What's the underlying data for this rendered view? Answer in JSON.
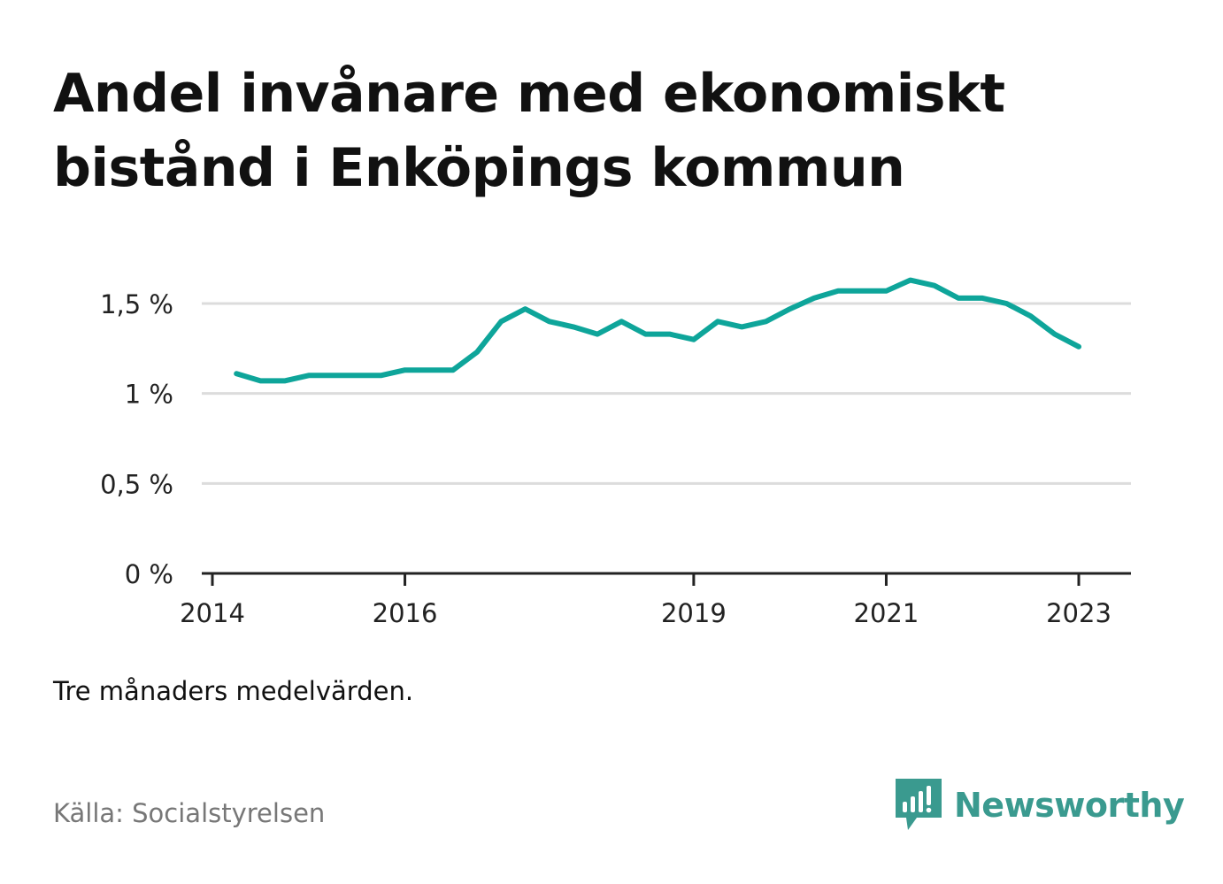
{
  "title": "Andel invånare med ekonomiskt bistånd i Enköpings kommun",
  "footnote": "Tre månaders medelvärden.",
  "source": "Källa: Socialstyrelsen",
  "logo": {
    "text": "Newsworthy",
    "icon": "newsworthy-logo-icon",
    "color": "#3a9a8f"
  },
  "chart_data": {
    "type": "line",
    "title": "Andel invånare med ekonomiskt bistånd i Enköpings kommun",
    "xlabel": "",
    "ylabel": "",
    "x_range": [
      "2014-01-01",
      "2023-06-30"
    ],
    "ylim": [
      0,
      1.8
    ],
    "grid": true,
    "y_ticks": [
      {
        "value": 0,
        "label": "0 %"
      },
      {
        "value": 0.5,
        "label": "0,5 %"
      },
      {
        "value": 1,
        "label": "1 %"
      },
      {
        "value": 1.5,
        "label": "1,5 %"
      }
    ],
    "x_ticks": [
      {
        "value": "2014-01-01",
        "label": "2014"
      },
      {
        "value": "2016-01-01",
        "label": "2016"
      },
      {
        "value": "2019-01-01",
        "label": "2019"
      },
      {
        "value": "2021-01-01",
        "label": "2021"
      },
      {
        "value": "2023-01-01",
        "label": "2023"
      }
    ],
    "series": [
      {
        "color": "#0ea59a",
        "points": [
          {
            "x": "2014-04-01",
            "y": 1.11
          },
          {
            "x": "2014-07-01",
            "y": 1.07
          },
          {
            "x": "2014-10-01",
            "y": 1.07
          },
          {
            "x": "2015-01-01",
            "y": 1.1
          },
          {
            "x": "2015-04-01",
            "y": 1.1
          },
          {
            "x": "2015-07-01",
            "y": 1.1
          },
          {
            "x": "2015-10-01",
            "y": 1.1
          },
          {
            "x": "2016-01-01",
            "y": 1.13
          },
          {
            "x": "2016-04-01",
            "y": 1.13
          },
          {
            "x": "2016-07-01",
            "y": 1.13
          },
          {
            "x": "2016-10-01",
            "y": 1.23
          },
          {
            "x": "2017-01-01",
            "y": 1.4
          },
          {
            "x": "2017-04-01",
            "y": 1.47
          },
          {
            "x": "2017-07-01",
            "y": 1.4
          },
          {
            "x": "2017-10-01",
            "y": 1.37
          },
          {
            "x": "2018-01-01",
            "y": 1.33
          },
          {
            "x": "2018-04-01",
            "y": 1.4
          },
          {
            "x": "2018-07-01",
            "y": 1.33
          },
          {
            "x": "2018-10-01",
            "y": 1.33
          },
          {
            "x": "2019-01-01",
            "y": 1.3
          },
          {
            "x": "2019-04-01",
            "y": 1.4
          },
          {
            "x": "2019-07-01",
            "y": 1.37
          },
          {
            "x": "2019-10-01",
            "y": 1.4
          },
          {
            "x": "2020-01-01",
            "y": 1.47
          },
          {
            "x": "2020-04-01",
            "y": 1.53
          },
          {
            "x": "2020-07-01",
            "y": 1.57
          },
          {
            "x": "2020-10-01",
            "y": 1.57
          },
          {
            "x": "2021-01-01",
            "y": 1.57
          },
          {
            "x": "2021-04-01",
            "y": 1.63
          },
          {
            "x": "2021-07-01",
            "y": 1.6
          },
          {
            "x": "2021-10-01",
            "y": 1.53
          },
          {
            "x": "2022-01-01",
            "y": 1.53
          },
          {
            "x": "2022-04-01",
            "y": 1.5
          },
          {
            "x": "2022-07-01",
            "y": 1.43
          },
          {
            "x": "2022-10-01",
            "y": 1.33
          },
          {
            "x": "2023-01-01",
            "y": 1.26
          }
        ]
      }
    ]
  }
}
